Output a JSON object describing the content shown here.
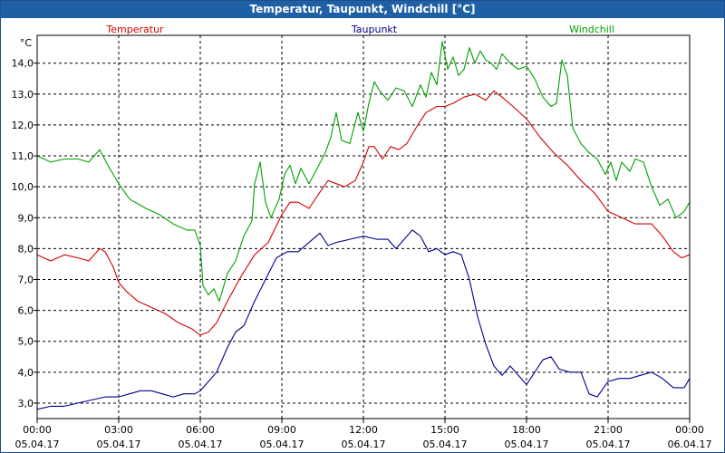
{
  "window": {
    "title": "Temperatur, Taupunkt, Windchill [°C]"
  },
  "chart_data": {
    "type": "line",
    "title": "Temperatur, Taupunkt, Windchill [°C]",
    "yunit": "°C",
    "ylim": [
      2.5,
      14.9
    ],
    "yticks": [
      3.0,
      4.0,
      5.0,
      6.0,
      7.0,
      8.0,
      9.0,
      10.0,
      11.0,
      12.0,
      13.0,
      14.0
    ],
    "ytick_labels": [
      "3,0",
      "4,0",
      "5,0",
      "6,0",
      "7,0",
      "8,0",
      "9,0",
      "10,0",
      "11,0",
      "12,0",
      "13,0",
      "14,0"
    ],
    "xlim": [
      0,
      24
    ],
    "xticks": [
      {
        "t": 0,
        "time": "00:00",
        "date": "05.04.17"
      },
      {
        "t": 3,
        "time": "03:00",
        "date": "05.04.17"
      },
      {
        "t": 6,
        "time": "06:00",
        "date": "05.04.17"
      },
      {
        "t": 9,
        "time": "09:00",
        "date": "05.04.17"
      },
      {
        "t": 12,
        "time": "12:00",
        "date": "05.04.17"
      },
      {
        "t": 15,
        "time": "15:00",
        "date": "05.04.17"
      },
      {
        "t": 18,
        "time": "18:00",
        "date": "05.04.17"
      },
      {
        "t": 21,
        "time": "21:00",
        "date": "05.04.17"
      },
      {
        "t": 24,
        "time": "00:00",
        "date": "06.04.17"
      }
    ],
    "grid": true,
    "legend_placement": "top",
    "series": [
      {
        "name": "Temperatur",
        "color": "#d40000",
        "points": [
          [
            0,
            7.8
          ],
          [
            0.5,
            7.6
          ],
          [
            1,
            7.8
          ],
          [
            1.5,
            7.7
          ],
          [
            1.9,
            7.6
          ],
          [
            2.3,
            8.0
          ],
          [
            2.5,
            7.9
          ],
          [
            2.8,
            7.4
          ],
          [
            3,
            6.9
          ],
          [
            3.3,
            6.6
          ],
          [
            3.7,
            6.3
          ],
          [
            4.2,
            6.1
          ],
          [
            4.7,
            5.9
          ],
          [
            5.2,
            5.6
          ],
          [
            5.7,
            5.4
          ],
          [
            6,
            5.2
          ],
          [
            6.3,
            5.3
          ],
          [
            6.6,
            5.6
          ],
          [
            7,
            6.3
          ],
          [
            7.5,
            7.1
          ],
          [
            8,
            7.8
          ],
          [
            8.5,
            8.2
          ],
          [
            9,
            9.1
          ],
          [
            9.3,
            9.5
          ],
          [
            9.6,
            9.5
          ],
          [
            10,
            9.3
          ],
          [
            10.3,
            9.7
          ],
          [
            10.7,
            10.2
          ],
          [
            11,
            10.1
          ],
          [
            11.3,
            10.0
          ],
          [
            11.7,
            10.2
          ],
          [
            12,
            10.8
          ],
          [
            12.2,
            11.3
          ],
          [
            12.4,
            11.3
          ],
          [
            12.7,
            10.9
          ],
          [
            13,
            11.3
          ],
          [
            13.3,
            11.2
          ],
          [
            13.6,
            11.4
          ],
          [
            14,
            12.0
          ],
          [
            14.3,
            12.4
          ],
          [
            14.7,
            12.6
          ],
          [
            15,
            12.6
          ],
          [
            15.3,
            12.7
          ],
          [
            15.7,
            12.9
          ],
          [
            16.1,
            13.0
          ],
          [
            16.5,
            12.8
          ],
          [
            16.8,
            13.1
          ],
          [
            17.1,
            12.9
          ],
          [
            17.5,
            12.6
          ],
          [
            18,
            12.2
          ],
          [
            18.5,
            11.6
          ],
          [
            19,
            11.1
          ],
          [
            19.5,
            10.7
          ],
          [
            20,
            10.2
          ],
          [
            20.5,
            9.8
          ],
          [
            21,
            9.2
          ],
          [
            21.5,
            9.0
          ],
          [
            22,
            8.8
          ],
          [
            22.6,
            8.8
          ],
          [
            23,
            8.4
          ],
          [
            23.4,
            7.9
          ],
          [
            23.7,
            7.7
          ],
          [
            24,
            7.8
          ]
        ]
      },
      {
        "name": "Taupunkt",
        "color": "#00008b",
        "points": [
          [
            0,
            2.8
          ],
          [
            0.5,
            2.9
          ],
          [
            1,
            2.9
          ],
          [
            1.5,
            3.0
          ],
          [
            2,
            3.1
          ],
          [
            2.5,
            3.2
          ],
          [
            3,
            3.2
          ],
          [
            3.4,
            3.3
          ],
          [
            3.8,
            3.4
          ],
          [
            4.2,
            3.4
          ],
          [
            4.6,
            3.3
          ],
          [
            5,
            3.2
          ],
          [
            5.4,
            3.3
          ],
          [
            5.8,
            3.3
          ],
          [
            6,
            3.4
          ],
          [
            6.3,
            3.7
          ],
          [
            6.6,
            4.0
          ],
          [
            7,
            4.8
          ],
          [
            7.3,
            5.3
          ],
          [
            7.6,
            5.5
          ],
          [
            8,
            6.3
          ],
          [
            8.4,
            7.0
          ],
          [
            8.8,
            7.7
          ],
          [
            9.2,
            7.9
          ],
          [
            9.6,
            7.9
          ],
          [
            10,
            8.2
          ],
          [
            10.4,
            8.5
          ],
          [
            10.7,
            8.1
          ],
          [
            11,
            8.2
          ],
          [
            11.5,
            8.3
          ],
          [
            12,
            8.4
          ],
          [
            12.5,
            8.3
          ],
          [
            12.9,
            8.3
          ],
          [
            13.2,
            8.0
          ],
          [
            13.5,
            8.3
          ],
          [
            13.8,
            8.6
          ],
          [
            14.1,
            8.4
          ],
          [
            14.4,
            7.9
          ],
          [
            14.7,
            8.0
          ],
          [
            15,
            7.8
          ],
          [
            15.3,
            7.9
          ],
          [
            15.6,
            7.8
          ],
          [
            15.9,
            7.0
          ],
          [
            16.2,
            5.8
          ],
          [
            16.5,
            4.9
          ],
          [
            16.8,
            4.2
          ],
          [
            17.1,
            3.9
          ],
          [
            17.4,
            4.2
          ],
          [
            17.7,
            3.9
          ],
          [
            18,
            3.6
          ],
          [
            18.3,
            4.0
          ],
          [
            18.6,
            4.4
          ],
          [
            18.9,
            4.5
          ],
          [
            19.2,
            4.1
          ],
          [
            19.6,
            4.0
          ],
          [
            20,
            4.0
          ],
          [
            20.3,
            3.3
          ],
          [
            20.6,
            3.2
          ],
          [
            21,
            3.7
          ],
          [
            21.4,
            3.8
          ],
          [
            21.8,
            3.8
          ],
          [
            22.2,
            3.9
          ],
          [
            22.6,
            4.0
          ],
          [
            23,
            3.8
          ],
          [
            23.4,
            3.5
          ],
          [
            23.8,
            3.5
          ],
          [
            24,
            3.8
          ]
        ]
      },
      {
        "name": "Windchill",
        "color": "#00a000",
        "points": [
          [
            0,
            11.0
          ],
          [
            0.5,
            10.8
          ],
          [
            1,
            10.9
          ],
          [
            1.5,
            10.9
          ],
          [
            1.9,
            10.8
          ],
          [
            2.3,
            11.2
          ],
          [
            2.6,
            10.7
          ],
          [
            3,
            10.1
          ],
          [
            3.4,
            9.6
          ],
          [
            4,
            9.3
          ],
          [
            4.5,
            9.1
          ],
          [
            5,
            8.8
          ],
          [
            5.5,
            8.6
          ],
          [
            5.8,
            8.6
          ],
          [
            6,
            8.1
          ],
          [
            6.1,
            6.8
          ],
          [
            6.3,
            6.5
          ],
          [
            6.5,
            6.7
          ],
          [
            6.7,
            6.3
          ],
          [
            7,
            7.2
          ],
          [
            7.3,
            7.6
          ],
          [
            7.6,
            8.4
          ],
          [
            7.9,
            8.9
          ],
          [
            8,
            10.1
          ],
          [
            8.2,
            10.8
          ],
          [
            8.4,
            9.5
          ],
          [
            8.6,
            9.0
          ],
          [
            8.9,
            9.6
          ],
          [
            9.1,
            10.4
          ],
          [
            9.3,
            10.7
          ],
          [
            9.5,
            10.1
          ],
          [
            9.7,
            10.6
          ],
          [
            10,
            10.1
          ],
          [
            10.3,
            10.6
          ],
          [
            10.6,
            11.1
          ],
          [
            10.8,
            11.6
          ],
          [
            11,
            12.4
          ],
          [
            11.2,
            11.5
          ],
          [
            11.5,
            11.4
          ],
          [
            11.8,
            12.4
          ],
          [
            12,
            11.8
          ],
          [
            12.2,
            12.7
          ],
          [
            12.4,
            13.4
          ],
          [
            12.6,
            13.1
          ],
          [
            12.9,
            12.8
          ],
          [
            13.2,
            13.2
          ],
          [
            13.5,
            13.1
          ],
          [
            13.8,
            12.6
          ],
          [
            14.1,
            13.3
          ],
          [
            14.3,
            12.9
          ],
          [
            14.5,
            13.7
          ],
          [
            14.7,
            13.3
          ],
          [
            14.9,
            14.7
          ],
          [
            15.1,
            13.8
          ],
          [
            15.3,
            14.2
          ],
          [
            15.5,
            13.6
          ],
          [
            15.7,
            13.8
          ],
          [
            15.9,
            14.5
          ],
          [
            16.1,
            14.0
          ],
          [
            16.3,
            14.4
          ],
          [
            16.5,
            14.1
          ],
          [
            16.7,
            14.0
          ],
          [
            16.9,
            13.8
          ],
          [
            17.1,
            14.3
          ],
          [
            17.4,
            14.0
          ],
          [
            17.7,
            13.8
          ],
          [
            18,
            13.9
          ],
          [
            18.3,
            13.5
          ],
          [
            18.6,
            12.9
          ],
          [
            18.9,
            12.6
          ],
          [
            19.1,
            12.7
          ],
          [
            19.3,
            14.1
          ],
          [
            19.5,
            13.6
          ],
          [
            19.7,
            11.9
          ],
          [
            20,
            11.4
          ],
          [
            20.3,
            11.1
          ],
          [
            20.6,
            10.9
          ],
          [
            20.9,
            10.4
          ],
          [
            21.1,
            10.8
          ],
          [
            21.3,
            10.2
          ],
          [
            21.5,
            10.8
          ],
          [
            21.8,
            10.5
          ],
          [
            22,
            10.9
          ],
          [
            22.3,
            10.8
          ],
          [
            22.6,
            10.0
          ],
          [
            22.9,
            9.4
          ],
          [
            23.2,
            9.6
          ],
          [
            23.5,
            9.0
          ],
          [
            23.8,
            9.2
          ],
          [
            24,
            9.5
          ]
        ]
      }
    ]
  }
}
